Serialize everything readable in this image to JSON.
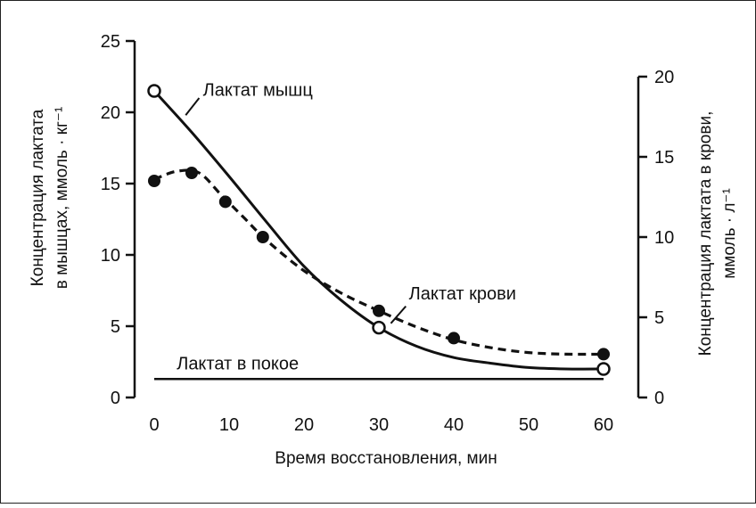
{
  "chart_data": {
    "type": "line",
    "xlabel": "Время восстановления, мин",
    "ylabel_left": [
      "Концентрация лактата",
      "в мышцах, ммоль · кг⁻¹"
    ],
    "ylabel_right": [
      "Концентрация лактата в крови,",
      "ммоль · л⁻¹"
    ],
    "x_ticks": [
      0,
      10,
      20,
      30,
      40,
      50,
      60
    ],
    "y_left_ticks": [
      0,
      5,
      10,
      15,
      20,
      25
    ],
    "y_right_ticks": [
      0,
      5,
      10,
      15,
      20
    ],
    "xlim": [
      0,
      60
    ],
    "ylim_left": [
      0,
      25
    ],
    "ylim_right": [
      0,
      20
    ],
    "grid": false,
    "series": [
      {
        "name": "Лактат мышц",
        "axis": "left",
        "style": "solid",
        "marker": "open-circle",
        "points": [
          [
            0,
            21.5
          ],
          [
            30,
            4.9
          ],
          [
            60,
            2.0
          ]
        ],
        "curve": [
          [
            0,
            21.5
          ],
          [
            5,
            18.6
          ],
          [
            10,
            15.5
          ],
          [
            15,
            12.3
          ],
          [
            20,
            9.2
          ],
          [
            25,
            6.8
          ],
          [
            30,
            4.9
          ],
          [
            35,
            3.6
          ],
          [
            40,
            2.8
          ],
          [
            45,
            2.4
          ],
          [
            50,
            2.1
          ],
          [
            55,
            2.0
          ],
          [
            60,
            2.0
          ]
        ]
      },
      {
        "name": "Лактат крови",
        "axis": "right",
        "style": "dashed",
        "marker": "filled-circle",
        "points": [
          [
            0,
            13.5
          ],
          [
            5,
            14.0
          ],
          [
            9.5,
            12.2
          ],
          [
            14.5,
            10.0
          ],
          [
            30,
            5.4
          ],
          [
            40,
            3.7
          ],
          [
            60,
            2.7
          ]
        ],
        "curve": [
          [
            0,
            13.6
          ],
          [
            3,
            14.1
          ],
          [
            6,
            14.0
          ],
          [
            9,
            12.6
          ],
          [
            12,
            11.2
          ],
          [
            15,
            9.8
          ],
          [
            20,
            7.9
          ],
          [
            25,
            6.5
          ],
          [
            30,
            5.4
          ],
          [
            35,
            4.4
          ],
          [
            40,
            3.6
          ],
          [
            45,
            3.1
          ],
          [
            50,
            2.8
          ],
          [
            55,
            2.7
          ],
          [
            60,
            2.7
          ]
        ]
      },
      {
        "name": "Лактат в покое",
        "axis": "left",
        "style": "solid",
        "marker": "none",
        "curve": [
          [
            0,
            1.3
          ],
          [
            60,
            1.3
          ]
        ]
      }
    ],
    "annotations": [
      {
        "text": "Лактат мышц",
        "x": 6.5,
        "y_left": 21.6
      },
      {
        "text": "Лактат крови",
        "x": 34,
        "y_left": 7.3
      },
      {
        "text": "Лактат в покое",
        "x": 3,
        "y_left": 2.4
      }
    ]
  }
}
